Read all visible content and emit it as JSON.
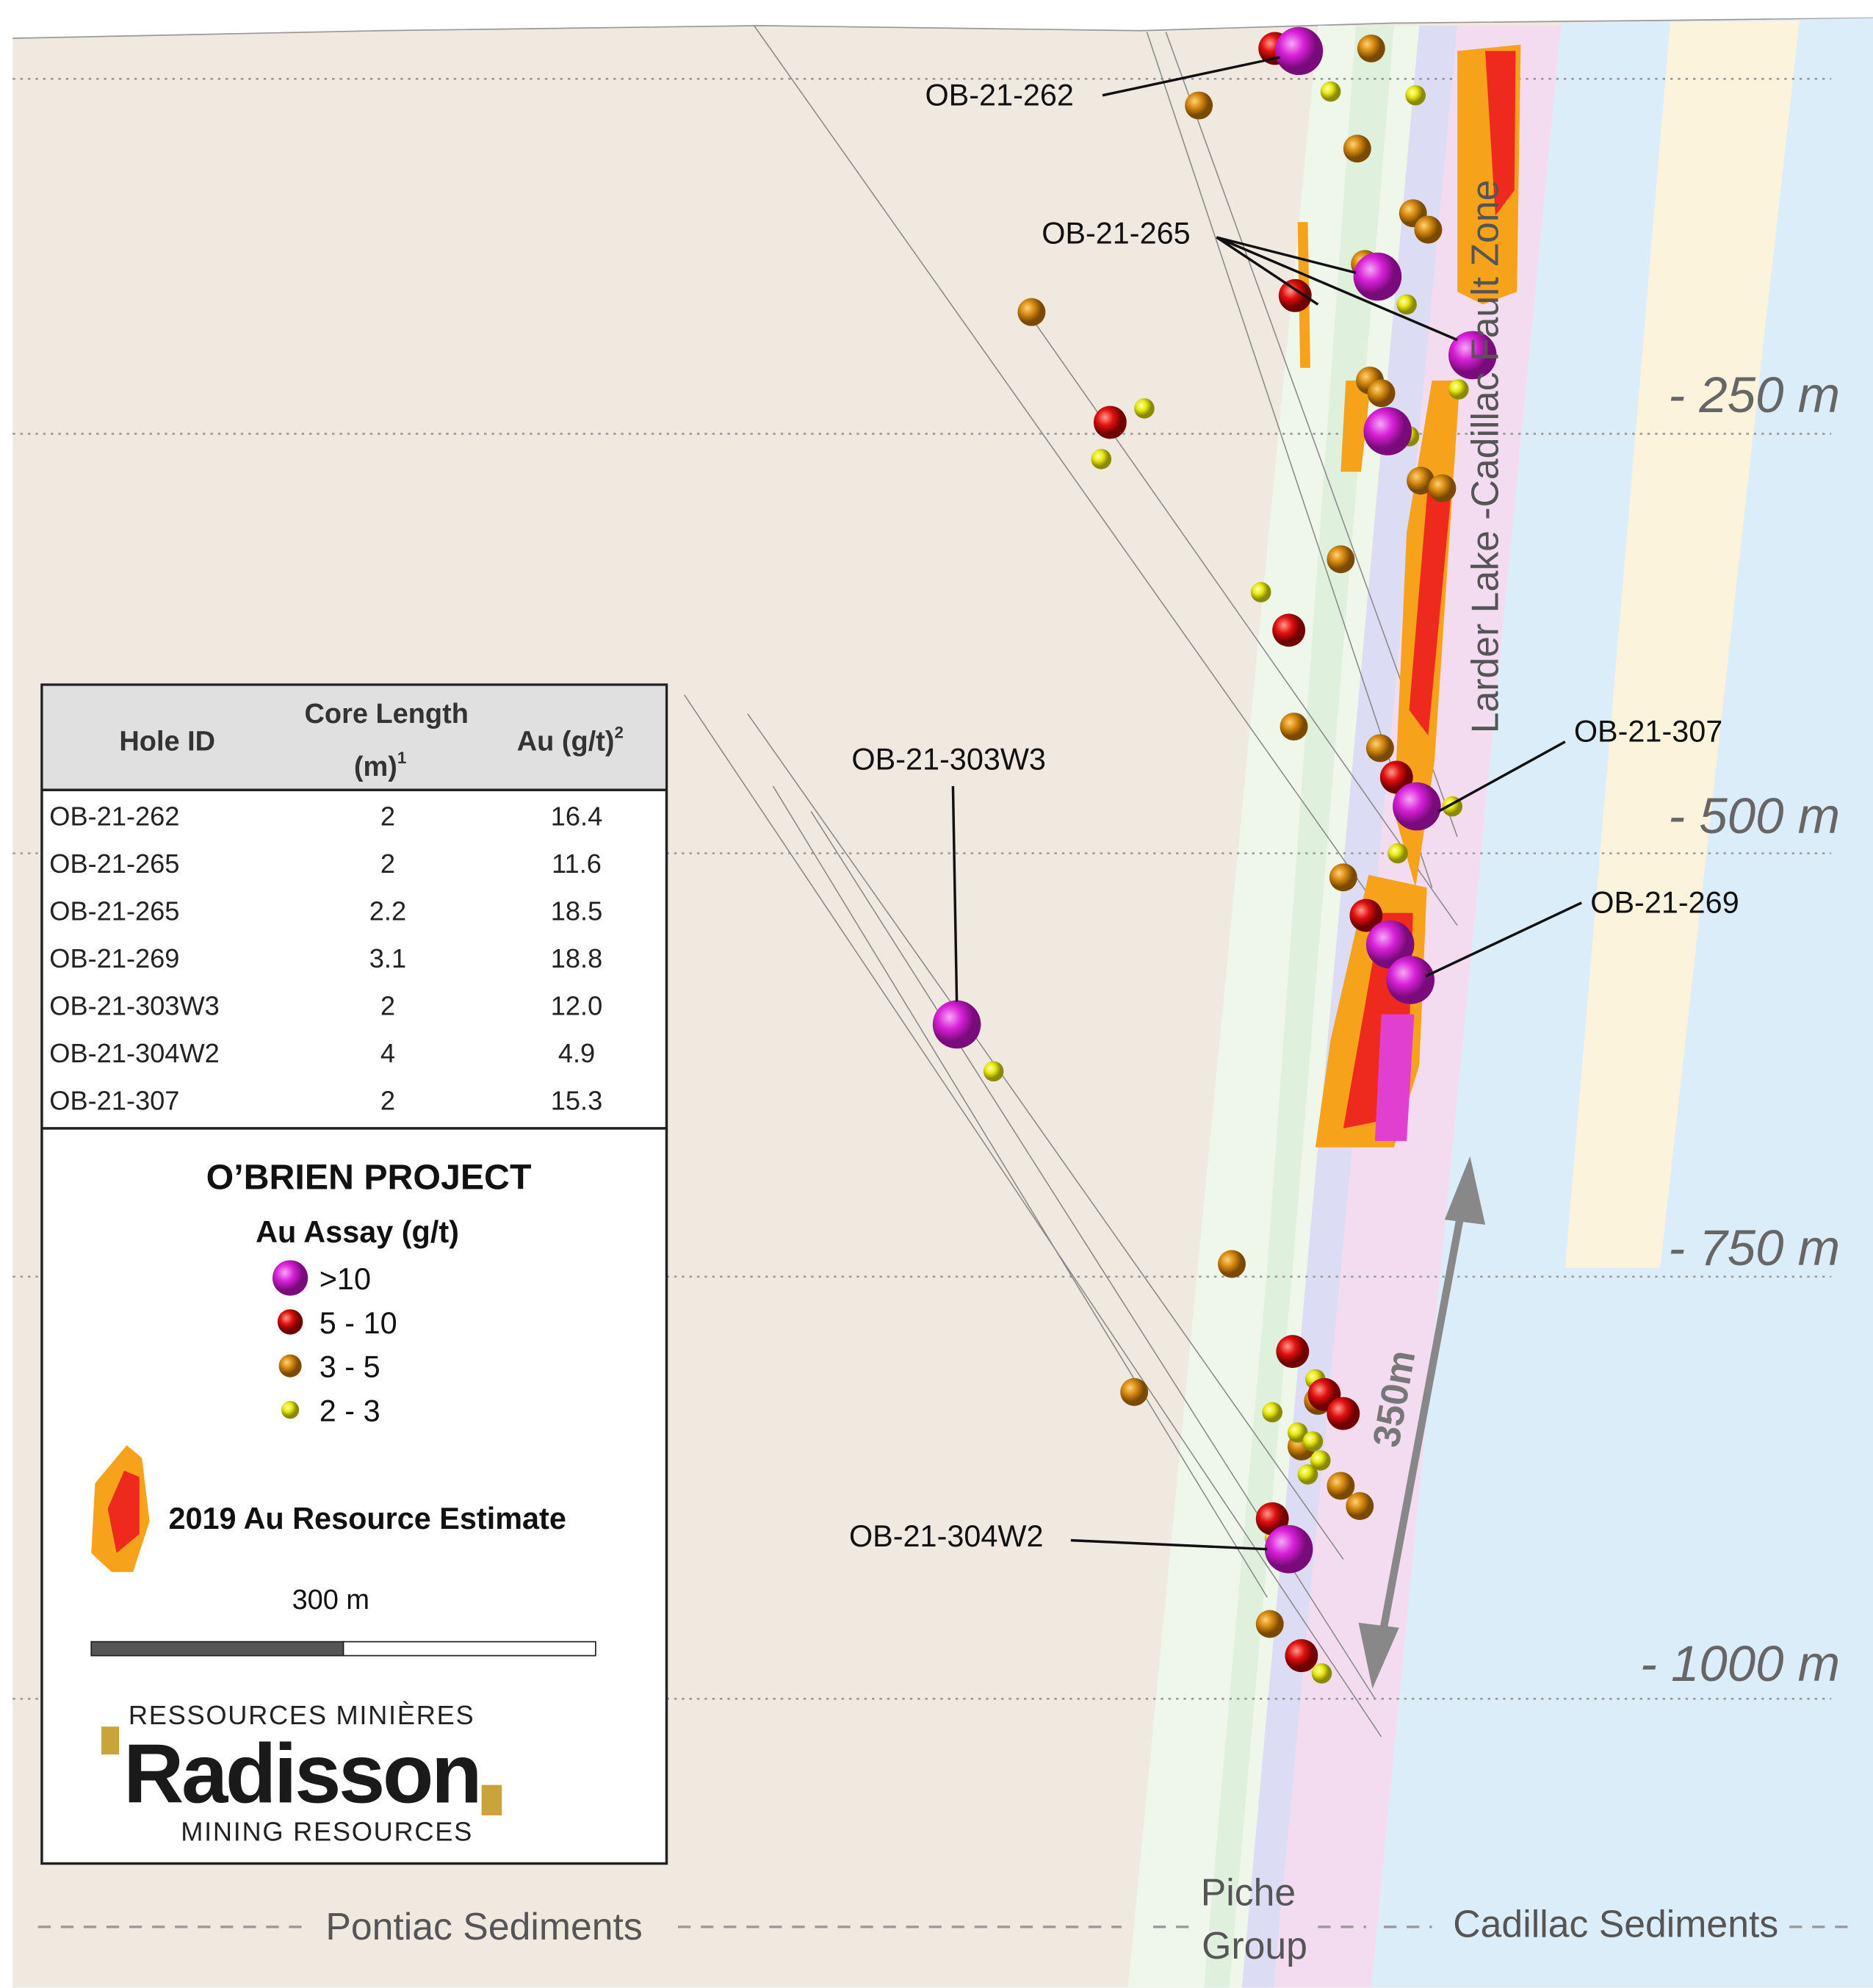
{
  "section": {
    "depth_labels": [
      "- 250 m",
      "- 500 m",
      "- 750 m",
      "- 1000 m"
    ],
    "hole_labels": [
      "OB-21-262",
      "OB-21-265",
      "OB-21-307",
      "OB-21-303W3",
      "OB-21-269",
      "OB-21-304W2"
    ],
    "fault_label": "Larder Lake -Cadillac Fault Zone",
    "distance_label": "350m",
    "units": {
      "left": "Pontiac Sediments",
      "middle": [
        "Piche",
        "Group"
      ],
      "right": "Cadillac Sediments"
    }
  },
  "table": {
    "headers": [
      {
        "text": "Hole ID"
      },
      {
        "text": "Core Length",
        "unit": "(m)",
        "note": "1"
      },
      {
        "text": "Au (g/t)",
        "note": "2"
      }
    ],
    "rows": [
      [
        "OB-21-262",
        "2",
        "16.4"
      ],
      [
        "OB-21-265",
        "2",
        "11.6"
      ],
      [
        "OB-21-265",
        "2.2",
        "18.5"
      ],
      [
        "OB-21-269",
        "3.1",
        "18.8"
      ],
      [
        "OB-21-303W3",
        "2",
        "12.0"
      ],
      [
        "OB-21-304W2",
        "4",
        "4.9"
      ],
      [
        "OB-21-307",
        "2",
        "15.3"
      ]
    ]
  },
  "legend": {
    "title": "O’BRIEN PROJECT",
    "subtitle": "Au Assay (g/t)",
    "items": [
      ">10",
      "5 - 10",
      "3 - 5",
      "2 - 3"
    ],
    "resource": "2019 Au Resource Estimate",
    "scale": "300 m"
  },
  "logo": {
    "top": "RESSOURCES MINIÈRES",
    "name": "Radisson",
    "bottom": "MINING RESOURCES"
  }
}
